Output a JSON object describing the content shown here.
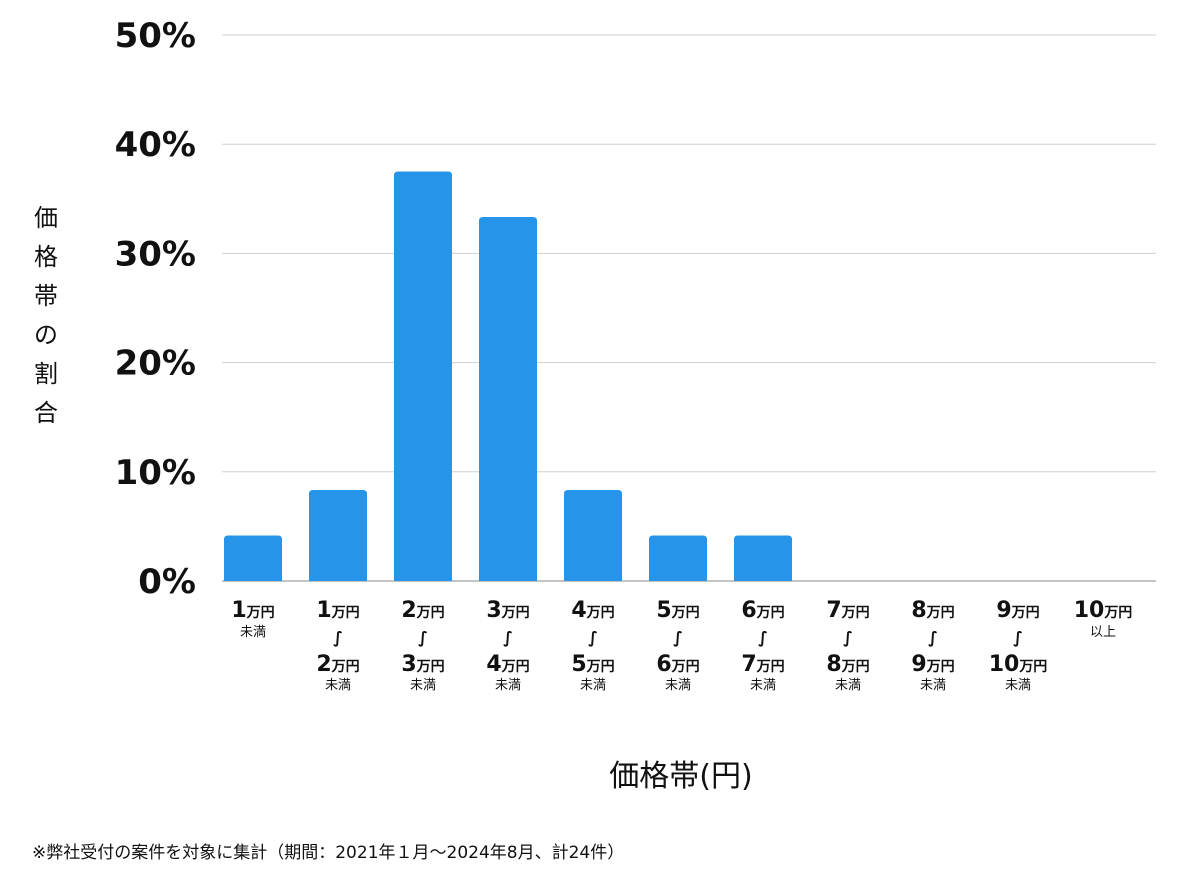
{
  "chart_data": {
    "type": "bar",
    "categories": [
      {
        "main": "1",
        "unit": "万円",
        "tilde": "",
        "main2": "",
        "unit2": "",
        "sub": "未満"
      },
      {
        "main": "1",
        "unit": "万円",
        "tilde": "∫",
        "main2": "2",
        "unit2": "万円",
        "sub": "未満"
      },
      {
        "main": "2",
        "unit": "万円",
        "tilde": "∫",
        "main2": "3",
        "unit2": "万円",
        "sub": "未満"
      },
      {
        "main": "3",
        "unit": "万円",
        "tilde": "∫",
        "main2": "4",
        "unit2": "万円",
        "sub": "未満"
      },
      {
        "main": "4",
        "unit": "万円",
        "tilde": "∫",
        "main2": "5",
        "unit2": "万円",
        "sub": "未満"
      },
      {
        "main": "5",
        "unit": "万円",
        "tilde": "∫",
        "main2": "6",
        "unit2": "万円",
        "sub": "未満"
      },
      {
        "main": "6",
        "unit": "万円",
        "tilde": "∫",
        "main2": "7",
        "unit2": "万円",
        "sub": "未満"
      },
      {
        "main": "7",
        "unit": "万円",
        "tilde": "∫",
        "main2": "8",
        "unit2": "万円",
        "sub": "未満"
      },
      {
        "main": "8",
        "unit": "万円",
        "tilde": "∫",
        "main2": "9",
        "unit2": "万円",
        "sub": "未満"
      },
      {
        "main": "9",
        "unit": "万円",
        "tilde": "∫",
        "main2": "10",
        "unit2": "万円",
        "sub": "未満"
      },
      {
        "main": "10",
        "unit": "万円",
        "tilde": "",
        "main2": "",
        "unit2": "",
        "sub": "以上"
      }
    ],
    "values": [
      4.17,
      8.33,
      37.5,
      33.33,
      8.33,
      4.17,
      4.17,
      0,
      0,
      0,
      0
    ],
    "yticks": [
      "0%",
      "10%",
      "20%",
      "30%",
      "40%",
      "50%"
    ],
    "ylim": [
      0,
      50
    ],
    "ylabel": "価格帯の割合",
    "xlabel": "価格帯(円)",
    "grid": true,
    "bar_color": "#2694e8"
  },
  "footnote": "※弊社受付の案件を対象に集計（期間：2021年１月〜2024年8月、計24件）"
}
